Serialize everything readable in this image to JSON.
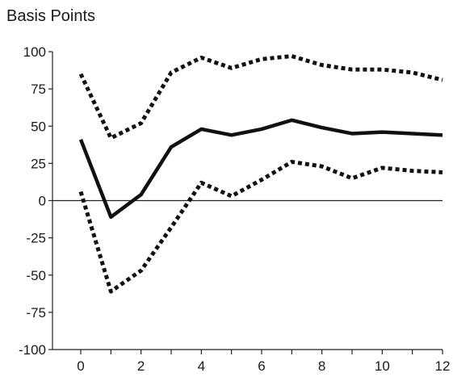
{
  "chart_data": {
    "type": "line",
    "title": "Basis Points",
    "xlabel": "",
    "ylabel": "",
    "xlim": [
      -1,
      12
    ],
    "ylim": [
      -100,
      100
    ],
    "x_ticks": [
      0,
      2,
      4,
      6,
      8,
      10,
      12
    ],
    "y_ticks": [
      100,
      75,
      50,
      25,
      0,
      -25,
      -50,
      -75,
      -100
    ],
    "grid": false,
    "legend": "none",
    "zero_line": true,
    "series": [
      {
        "style": "solid",
        "color": "#111111",
        "x": [
          0,
          1,
          2,
          3,
          4,
          5,
          6,
          7,
          8,
          9,
          10,
          11,
          12
        ],
        "values": [
          41,
          -11,
          4,
          36,
          48,
          44,
          48,
          54,
          49,
          45,
          46,
          45,
          44
        ]
      },
      {
        "style": "dotted",
        "color": "#111111",
        "x": [
          0,
          1,
          2,
          3,
          4,
          5,
          6,
          7,
          8,
          9,
          10,
          11,
          12
        ],
        "values": [
          85,
          42,
          52,
          86,
          96,
          89,
          95,
          97,
          91,
          88,
          88,
          86,
          81
        ]
      },
      {
        "style": "dotted",
        "color": "#111111",
        "x": [
          0,
          1,
          2,
          3,
          4,
          5,
          6,
          7,
          8,
          9,
          10,
          11,
          12
        ],
        "values": [
          6,
          -61,
          -47,
          -18,
          12,
          3,
          14,
          26,
          23,
          15,
          22,
          20,
          19
        ]
      }
    ]
  }
}
